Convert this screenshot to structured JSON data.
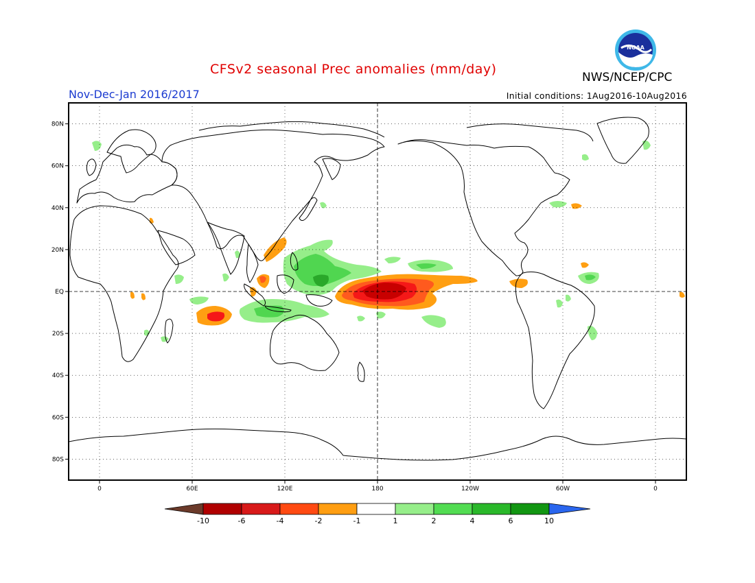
{
  "header": {
    "title": "CFSv2 seasonal Prec anomalies (mm/day)",
    "agency": "NWS/NCEP/CPC",
    "season": "Nov-Dec-Jan 2016/2017",
    "initial_conditions": "Initial conditions: 1Aug2016-10Aug2016",
    "logo_text": "NOAA"
  },
  "axes": {
    "lat_labels": [
      "80N",
      "60N",
      "40N",
      "20N",
      "EQ",
      "20S",
      "40S",
      "60S",
      "80S"
    ],
    "lat_values": [
      80,
      60,
      40,
      20,
      0,
      -20,
      -40,
      -60,
      -80
    ],
    "lon_labels": [
      "0",
      "60E",
      "120E",
      "180",
      "120W",
      "60W",
      "0"
    ],
    "lon_values": [
      0,
      60,
      120,
      180,
      240,
      300,
      360
    ]
  },
  "colorbar": {
    "labels": [
      "-10",
      "-6",
      "-4",
      "-2",
      "-1",
      "1",
      "2",
      "4",
      "6",
      "10"
    ],
    "colors": [
      "#6b3a2a",
      "#b00000",
      "#d81a1a",
      "#ff4a12",
      "#ff9e12",
      "#ffffff",
      "#96ee8a",
      "#52dc52",
      "#2ab82a",
      "#129612",
      "#2a66ee"
    ]
  },
  "anomaly_colors": {
    "dry_severe": "#c80000",
    "dry_strong": "#f51818",
    "dry_moderate": "#ff5a1e",
    "dry_weak": "#ff9f12",
    "wet_weak": "#96ee8a",
    "wet_moderate": "#50d650",
    "wet_strong": "#2aa82a"
  }
}
